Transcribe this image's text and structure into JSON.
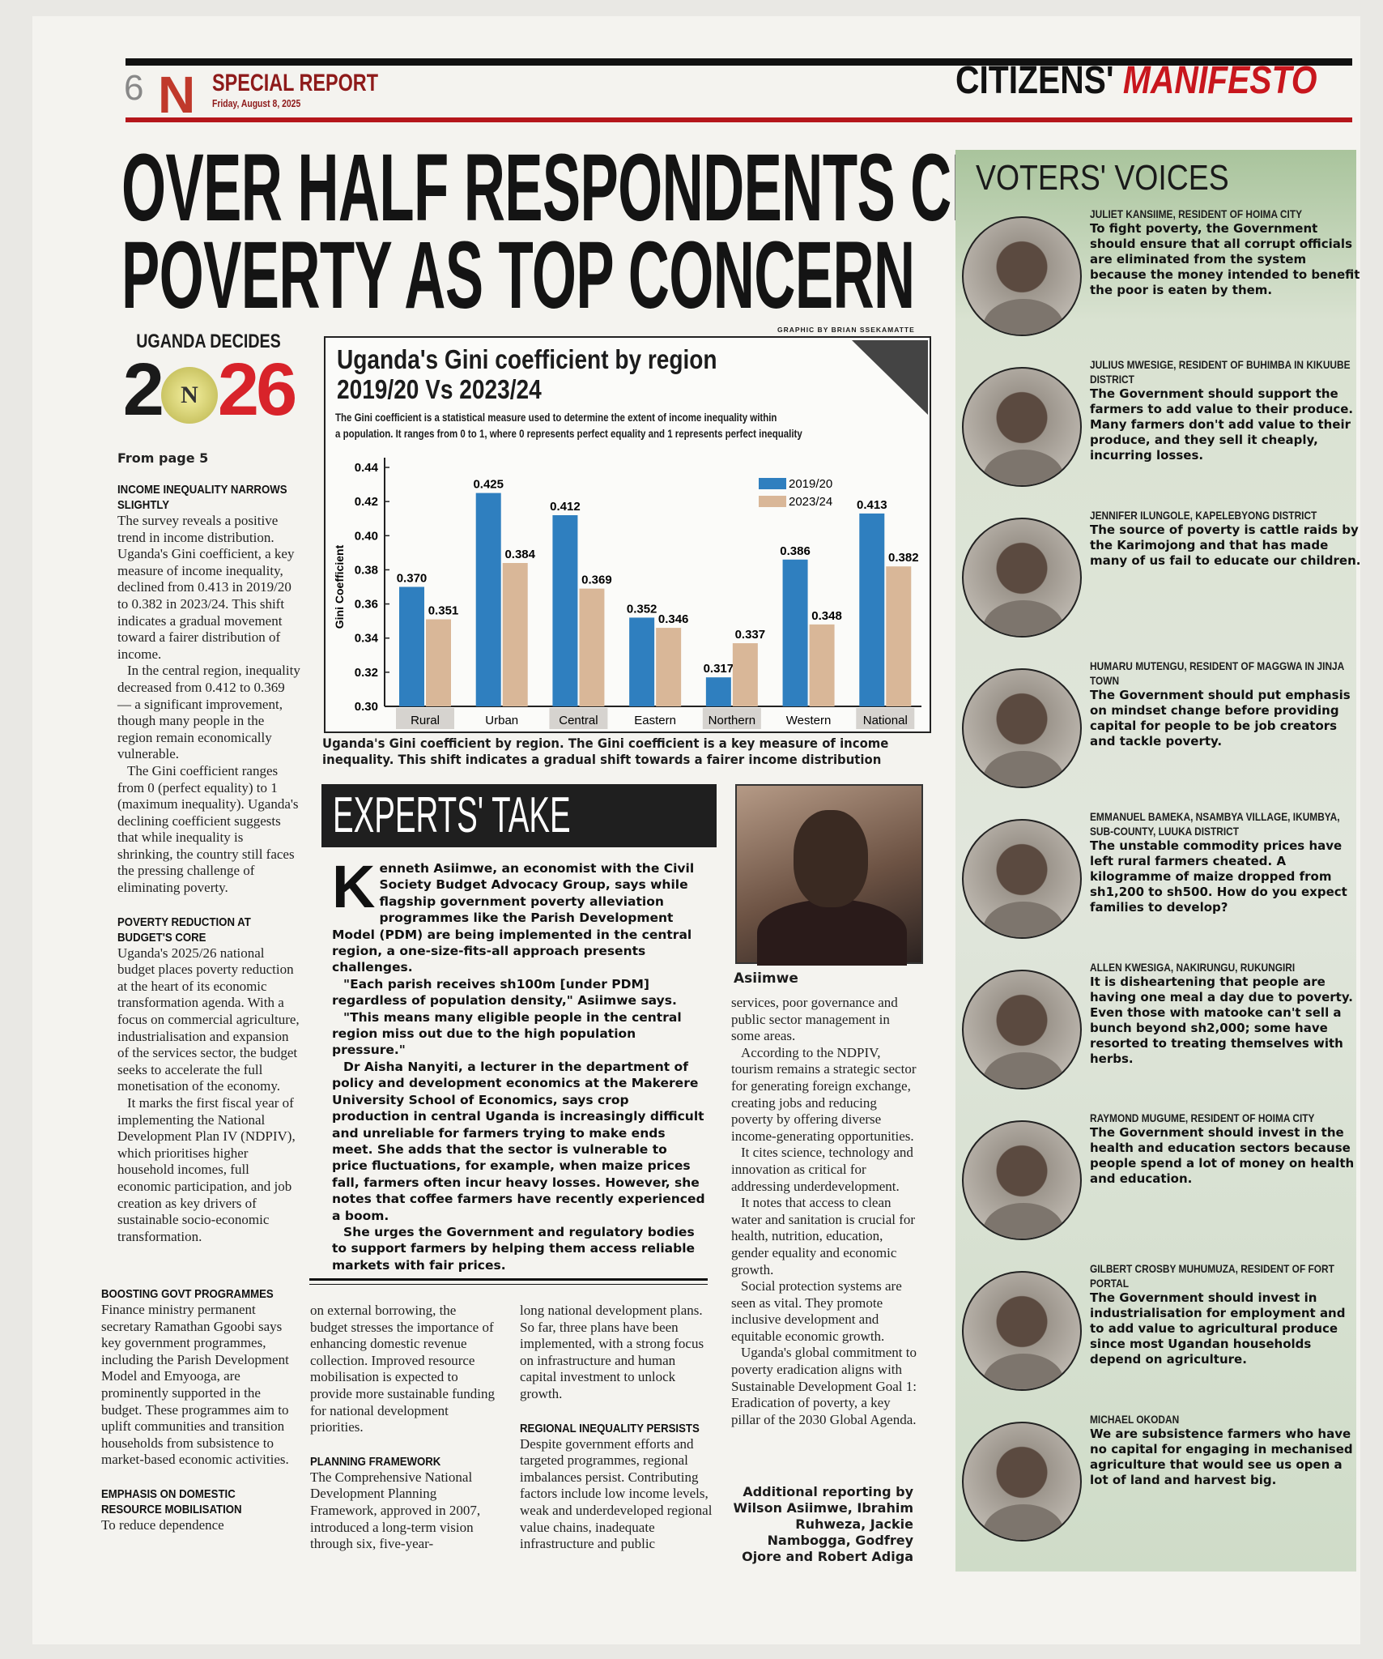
{
  "header": {
    "page_number": "6",
    "logo": "N",
    "section": "SPECIAL REPORT",
    "date": "Friday, August 8, 2025",
    "series_a": "CITIZENS'",
    "series_b": "MANIFESTO"
  },
  "headline": [
    "OVER HALF RESPONDENTS CITE",
    "POVERTY AS TOP CONCERN"
  ],
  "badge": {
    "title": "UGANDA DECIDES",
    "year_a": "2",
    "logo": "N",
    "year_b": "26"
  },
  "left": {
    "from": "From page 5",
    "s1_head": "INCOME INEQUALITY NARROWS SLIGHTLY",
    "s1": [
      "The survey reveals a positive trend in income distribution. Uganda's Gini coefficient, a key measure of income inequality, declined from 0.413 in 2019/20 to 0.382 in 2023/24. This shift indicates a gradual movement toward a fairer distribution of income.",
      "In the central region, inequality decreased from 0.412 to 0.369 — a significant improvement, though many people in the region remain economically vulnerable.",
      "The Gini coefficient ranges from 0 (perfect equality) to 1 (maximum inequality). Uganda's declining coefficient suggests that while inequality is shrinking, the country still faces the pressing challenge of eliminating poverty."
    ],
    "s2_head": "POVERTY REDUCTION AT BUDGET'S CORE",
    "s2": [
      "Uganda's 2025/26 national budget places poverty reduction at the heart of its economic transformation agenda. With a focus on commercial agriculture, industrialisation and expansion of the services sector, the budget seeks to accelerate the full monetisation of the economy.",
      "It marks the first fiscal year of implementing the National Development Plan IV (NDPIV), which prioritises higher household incomes, full economic participation, and job creation as key drivers of sustainable socio-economic transformation."
    ]
  },
  "bottom": {
    "s3_head": "BOOSTING GOVT PROGRAMMES",
    "s3": [
      "Finance ministry permanent secretary Ramathan Ggoobi says key government programmes, including the Parish Development Model and Emyooga, are prominently supported in the budget. These programmes aim to uplift communities and transition households from subsistence to market-based economic activities."
    ],
    "s4_head": "EMPHASIS ON DOMESTIC RESOURCE MOBILISATION",
    "s4a": "To reduce dependence",
    "s4b": "on external borrowing, the budget stresses the importance of enhancing domestic revenue collection. Improved resource mobilisation is expected to provide more sustainable funding for national development priorities.",
    "s5_head": "PLANNING FRAMEWORK",
    "s5a": "The Comprehensive National Development Planning Framework, approved in 2007, introduced a long-term vision through six, five-year-",
    "s5b": "long national development plans. So far, three plans have been implemented, with a strong focus on infrastructure and human capital investment to unlock growth.",
    "s6_head": "REGIONAL INEQUALITY PERSISTS",
    "s6a": "Despite government efforts and targeted programmes, regional imbalances persist. Contributing factors include low income levels, weak and underdeveloped regional value chains, inadequate infrastructure and public",
    "s6b": [
      "services, poor governance and public sector management in some areas.",
      "According to the NDPIV, tourism remains a strategic sector for generating foreign exchange, creating jobs and reducing poverty by offering diverse income-generating opportunities.",
      "It cites science, technology and innovation as critical for addressing underdevelopment.",
      "It notes that access to clean water and sanitation is crucial for health, nutrition, education, gender equality and economic growth.",
      "Social protection systems are seen as vital. They promote inclusive development and equitable economic growth.",
      "Uganda's global commitment to poverty eradication aligns with Sustainable Development Goal 1: Eradication of poverty, a key pillar of the 2030 Global Agenda."
    ],
    "credits": "Additional reporting by Wilson Asiimwe, Ibrahim Ruhweza, Jackie Nambogga, Godfrey Ojore and Robert Adiga"
  },
  "chart_data": {
    "type": "bar",
    "credit": "GRAPHIC BY BRIAN SSEKAMATTE",
    "title": "Uganda's Gini coefficient by region 2019/20 Vs 2023/24",
    "title_lines": [
      "Uganda's Gini coefficient by region",
      "2019/20 Vs 2023/24"
    ],
    "subtitle_lines": [
      "The Gini coefficient is a statistical measure used to determine the extent of income inequality within",
      "a population. It ranges from 0 to 1, where 0 represents perfect equality and 1 represents perfect inequality"
    ],
    "ylabel": "Gini Coefficient",
    "xlabel": "",
    "ylim": [
      0.3,
      0.44
    ],
    "yticks": [
      "0.44",
      "0.42",
      "0.40",
      "0.38",
      "0.36",
      "0.34",
      "0.32",
      "0.30"
    ],
    "categories": [
      "Rural",
      "Urban",
      "Central",
      "Eastern",
      "Northern",
      "Western",
      "National"
    ],
    "series": [
      {
        "name": "2019/20",
        "color": "#2f7fbf",
        "values": [
          0.37,
          0.425,
          0.412,
          0.352,
          0.317,
          0.386,
          0.413
        ]
      },
      {
        "name": "2023/24",
        "color": "#d9b798",
        "values": [
          0.351,
          0.384,
          0.369,
          0.346,
          0.337,
          0.348,
          0.382
        ]
      }
    ],
    "legend": "top-right",
    "grid": false,
    "caption": "Uganda's Gini coefficient by region. The Gini coefficient is a key measure of income inequality. This shift indicates a gradual shift towards a fairer income distribution"
  },
  "experts": {
    "title": "EXPERTS' TAKE",
    "photo_caption": "Asiimwe",
    "dropcap": "K",
    "paras": [
      "enneth Asiimwe, an economist with the Civil Society Budget Advocacy Group, says while flagship government poverty alleviation programmes like the Parish Development Model (PDM) are being implemented in the central region, a one-size-fits-all approach presents challenges.",
      "\"Each parish receives sh100m [under PDM] regardless of population density,\" Asiimwe says.",
      "\"This means many eligible people in the central region miss out due to the high population pressure.\"",
      "Dr Aisha Nanyiti, a lecturer in the department of policy and development economics at the Makerere University School of Economics, says crop production in central Uganda is increasingly difficult and unreliable for farmers trying to make ends meet. She adds that the sector is vulnerable to price fluctuations, for example, when maize prices fall, farmers often incur heavy losses. However, she notes that coffee farmers have recently experienced a boom.",
      "She urges the Government and regulatory bodies to support farmers by helping them access reliable markets with fair prices."
    ]
  },
  "voters": {
    "title": "VOTERS' VOICES",
    "items": [
      {
        "name": "JULIET KANSIIME, RESIDENT OF HOIMA CITY",
        "quote": "To fight poverty, the Government should ensure that all corrupt officials are eliminated from the system because the money intended to benefit the poor is eaten by them."
      },
      {
        "name": "JULIUS MWESIGE, RESIDENT OF BUHIMBA IN KIKUUBE DISTRICT",
        "quote": "The Government should support the farmers to add value to their produce. Many farmers don't add value to their produce, and they sell it cheaply, incurring losses."
      },
      {
        "name": "JENNIFER ILUNGOLE, KAPELEBYONG DISTRICT",
        "quote": "The source of poverty is cattle raids by the Karimojong and that has made many of us fail to educate our children."
      },
      {
        "name": "HUMARU MUTENGU, RESIDENT OF MAGGWA IN JINJA TOWN",
        "quote": "The Government should put emphasis on mindset change before providing capital for people to be job creators and tackle poverty."
      },
      {
        "name": "EMMANUEL BAMEKA, NSAMBYA VILLAGE, IKUMBYA, SUB-COUNTY, LUUKA DISTRICT",
        "quote": "The unstable commodity prices have left rural farmers cheated. A kilogramme of maize dropped from sh1,200 to sh500. How do you expect families to develop?"
      },
      {
        "name": "ALLEN KWESIGA, NAKIRUNGU, RUKUNGIRI",
        "quote": "It is disheartening that people are having one meal a day due to poverty. Even those with matooke can't sell a bunch beyond sh2,000; some have resorted to treating themselves with herbs."
      },
      {
        "name": "RAYMOND MUGUME, RESIDENT OF HOIMA CITY",
        "quote": "The Government should invest in the health and education sectors because people spend a lot of money on health and education."
      },
      {
        "name": "GILBERT CROSBY MUHUMUZA, RESIDENT OF FORT PORTAL",
        "quote": "The Government should invest in industrialisation for employment and to add value to agricultural produce since most Ugandan households depend on agriculture."
      },
      {
        "name": "MICHAEL OKODAN",
        "quote": "We are subsistence farmers who have no capital for engaging in mechanised agriculture that would see us open a lot of land and harvest big."
      }
    ]
  }
}
